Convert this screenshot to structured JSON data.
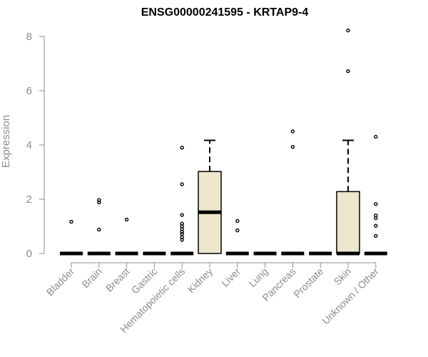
{
  "chart_data": {
    "type": "boxplot",
    "title": "ENSG00000241595 - KRTAP9-4",
    "ylabel": "Expression",
    "xlabel": "",
    "ylim": [
      0,
      8.3
    ],
    "yticks": [
      0,
      2,
      4,
      6,
      8
    ],
    "grid": false,
    "colors": {
      "box_fill": "#ece6cc",
      "line": "#000000",
      "axis": "#8c8c8c"
    },
    "categories": [
      "Bladder",
      "Brain",
      "Breast",
      "Gastric",
      "Hematopoietic cells",
      "Kidney",
      "Liver",
      "Lung",
      "Pancreas",
      "Prostate",
      "Skin",
      "Unknown / Other"
    ],
    "boxes": [
      {
        "q1": 0,
        "median": 0,
        "q3": 0,
        "whisker_low": 0,
        "whisker_high": 0,
        "outliers": [
          1.17
        ]
      },
      {
        "q1": 0,
        "median": 0,
        "q3": 0,
        "whisker_low": 0,
        "whisker_high": 0,
        "outliers": [
          0.88,
          1.88,
          1.97
        ]
      },
      {
        "q1": 0,
        "median": 0,
        "q3": 0,
        "whisker_low": 0,
        "whisker_high": 0,
        "outliers": [
          1.25
        ]
      },
      {
        "q1": 0,
        "median": 0,
        "q3": 0,
        "whisker_low": 0,
        "whisker_high": 0,
        "outliers": []
      },
      {
        "q1": 0,
        "median": 0,
        "q3": 0,
        "whisker_low": 0,
        "whisker_high": 0,
        "outliers": [
          0.5,
          0.6,
          0.72,
          0.8,
          0.9,
          1.0,
          1.1,
          1.42,
          2.55,
          3.9
        ]
      },
      {
        "q1": 0,
        "median": 1.52,
        "q3": 3.02,
        "whisker_low": 0,
        "whisker_high": 4.17,
        "outliers": []
      },
      {
        "q1": 0,
        "median": 0,
        "q3": 0,
        "whisker_low": 0,
        "whisker_high": 0,
        "outliers": [
          0.85,
          1.2
        ]
      },
      {
        "q1": 0,
        "median": 0,
        "q3": 0,
        "whisker_low": 0,
        "whisker_high": 0,
        "outliers": []
      },
      {
        "q1": 0,
        "median": 0,
        "q3": 0,
        "whisker_low": 0,
        "whisker_high": 0,
        "outliers": [
          3.93,
          4.5
        ]
      },
      {
        "q1": 0,
        "median": 0,
        "q3": 0,
        "whisker_low": 0,
        "whisker_high": 0,
        "outliers": []
      },
      {
        "q1": 0,
        "median": 0,
        "q3": 2.28,
        "whisker_low": 0,
        "whisker_high": 4.17,
        "outliers": [
          6.72,
          8.22
        ]
      },
      {
        "q1": 0,
        "median": 0,
        "q3": 0,
        "whisker_low": 0,
        "whisker_high": 0,
        "outliers": [
          0.65,
          1.02,
          1.3,
          1.4,
          1.82,
          4.3
        ]
      }
    ]
  }
}
